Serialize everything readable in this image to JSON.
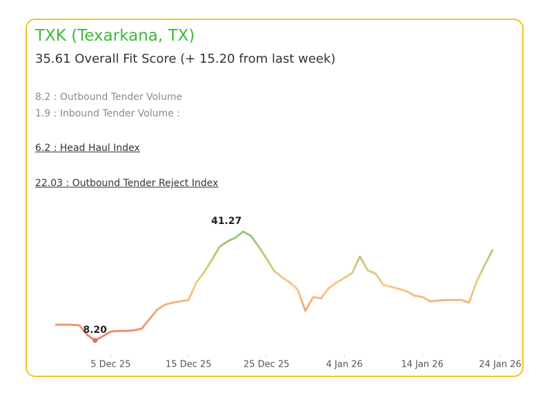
{
  "header": {
    "title": "TXK (Texarkana, TX)",
    "subtitle": "35.61 Overall Fit Score (+ 15.20 from last week)"
  },
  "metrics": [
    "8.2 : Outbound Tender Volume",
    "1.9 : Inbound Tender Volume :"
  ],
  "links": [
    "6.2 : Head Haul Index",
    "22.03 : Outbound Tender Reject Index"
  ],
  "chart_data": {
    "type": "line",
    "x": [
      "2025-11-28",
      "2025-11-29",
      "2025-11-30",
      "2025-12-01",
      "2025-12-02",
      "2025-12-03",
      "2025-12-04",
      "2025-12-05",
      "2025-12-06",
      "2025-12-07",
      "2025-12-08",
      "2025-12-09",
      "2025-12-10",
      "2025-12-11",
      "2025-12-12",
      "2025-12-13",
      "2025-12-14",
      "2025-12-15",
      "2025-12-16",
      "2025-12-17",
      "2025-12-18",
      "2025-12-19",
      "2025-12-20",
      "2025-12-21",
      "2025-12-22",
      "2025-12-23",
      "2025-12-24",
      "2025-12-25",
      "2025-12-26",
      "2025-12-27",
      "2025-12-28",
      "2025-12-29",
      "2025-12-30",
      "2025-12-31",
      "2026-01-01",
      "2026-01-02",
      "2026-01-03",
      "2026-01-04",
      "2026-01-05",
      "2026-01-06",
      "2026-01-07",
      "2026-01-08",
      "2026-01-09",
      "2026-01-10",
      "2026-01-11",
      "2026-01-12",
      "2026-01-13",
      "2026-01-14",
      "2026-01-15",
      "2026-01-16",
      "2026-01-17",
      "2026-01-18",
      "2026-01-19",
      "2026-01-20",
      "2026-01-21",
      "2026-01-22",
      "2026-01-23"
    ],
    "values": [
      13.0,
      13.0,
      13.0,
      12.8,
      9.9,
      8.2,
      9.5,
      10.9,
      11.1,
      11.1,
      11.3,
      11.8,
      14.7,
      17.6,
      19.1,
      19.7,
      20.1,
      20.5,
      25.8,
      28.9,
      32.7,
      36.7,
      38.3,
      39.4,
      41.27,
      40.0,
      36.7,
      33.1,
      29.3,
      27.4,
      25.8,
      23.7,
      17.2,
      21.4,
      21.0,
      24.1,
      25.8,
      27.2,
      28.7,
      33.7,
      29.5,
      28.5,
      25.1,
      24.5,
      23.9,
      23.1,
      21.8,
      21.4,
      20.1,
      20.3,
      20.5,
      20.5,
      20.5,
      19.7,
      26.2,
      31.0,
      35.61
    ],
    "value_labels": [
      null,
      null,
      null,
      null,
      null,
      "8.20",
      null,
      null,
      null,
      null,
      null,
      null,
      null,
      null,
      null,
      null,
      null,
      null,
      null,
      null,
      null,
      null,
      null,
      null,
      "41.27",
      null,
      null,
      null,
      null,
      null,
      null,
      null,
      null,
      null,
      null,
      null,
      null,
      null,
      null,
      null,
      null,
      null,
      null,
      null,
      null,
      null,
      null,
      null,
      null,
      null,
      null,
      null,
      null,
      null,
      null,
      null,
      null
    ],
    "color_scale": [
      "#ea6a55",
      "#f2c46c",
      "#7bbd5c"
    ],
    "xlim": [
      "2025-11-27",
      "2026-01-27"
    ],
    "xticks": [
      {
        "value": "2025-12-05",
        "label": "5 Dec 25"
      },
      {
        "value": "2025-12-15",
        "label": "15 Dec 25"
      },
      {
        "value": "2025-12-25",
        "label": "25 Dec 25"
      },
      {
        "value": "2026-01-04",
        "label": "4 Jan 26"
      },
      {
        "value": "2026-01-14",
        "label": "14 Jan 26"
      },
      {
        "value": "2026-01-24",
        "label": "24 Jan 26"
      }
    ]
  }
}
